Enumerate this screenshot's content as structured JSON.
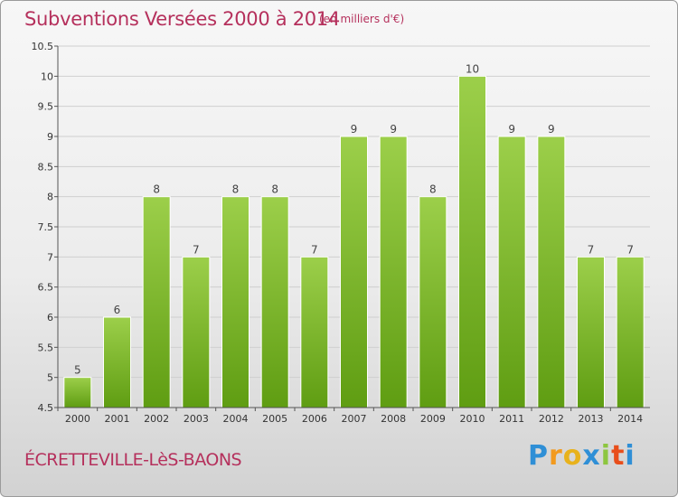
{
  "header": {
    "title": "Subventions Versées 2000 à 2014",
    "subtitle": "(en milliers d'€)"
  },
  "footer": {
    "commune": "ÉCRETTEVILLE-LèS-BAONS",
    "logo": {
      "letters": [
        "P",
        "r",
        "o",
        "x",
        "i",
        "t",
        "i"
      ],
      "colors": [
        "#2f8fd6",
        "#f29a1e",
        "#e8b21c",
        "#2f8fd6",
        "#8dc63f",
        "#e84e1b",
        "#2f8fd6"
      ]
    }
  },
  "chart_data": {
    "type": "bar",
    "categories": [
      "2000",
      "2001",
      "2002",
      "2003",
      "2004",
      "2005",
      "2006",
      "2007",
      "2008",
      "2009",
      "2010",
      "2011",
      "2012",
      "2013",
      "2014"
    ],
    "values": [
      5,
      6,
      8,
      7,
      8,
      8,
      7,
      9,
      9,
      8,
      10,
      9,
      9,
      7,
      7
    ],
    "data_labels": [
      "5",
      "6",
      "8",
      "7",
      "8",
      "8",
      "7",
      "9",
      "9",
      "8",
      "10",
      "9",
      "9",
      "7",
      "7"
    ],
    "yticks": [
      "4.5",
      "5",
      "5.5",
      "6",
      "6.5",
      "7",
      "7.5",
      "8",
      "8.5",
      "9",
      "9.5",
      "10",
      "10.5"
    ],
    "ylim": [
      4.5,
      10.5
    ],
    "grid": true,
    "colors": {
      "bar_light": "#9ccf4a",
      "bar_dark": "#5f9d12",
      "grid": "#cfcfcf",
      "axis": "#555555"
    }
  }
}
